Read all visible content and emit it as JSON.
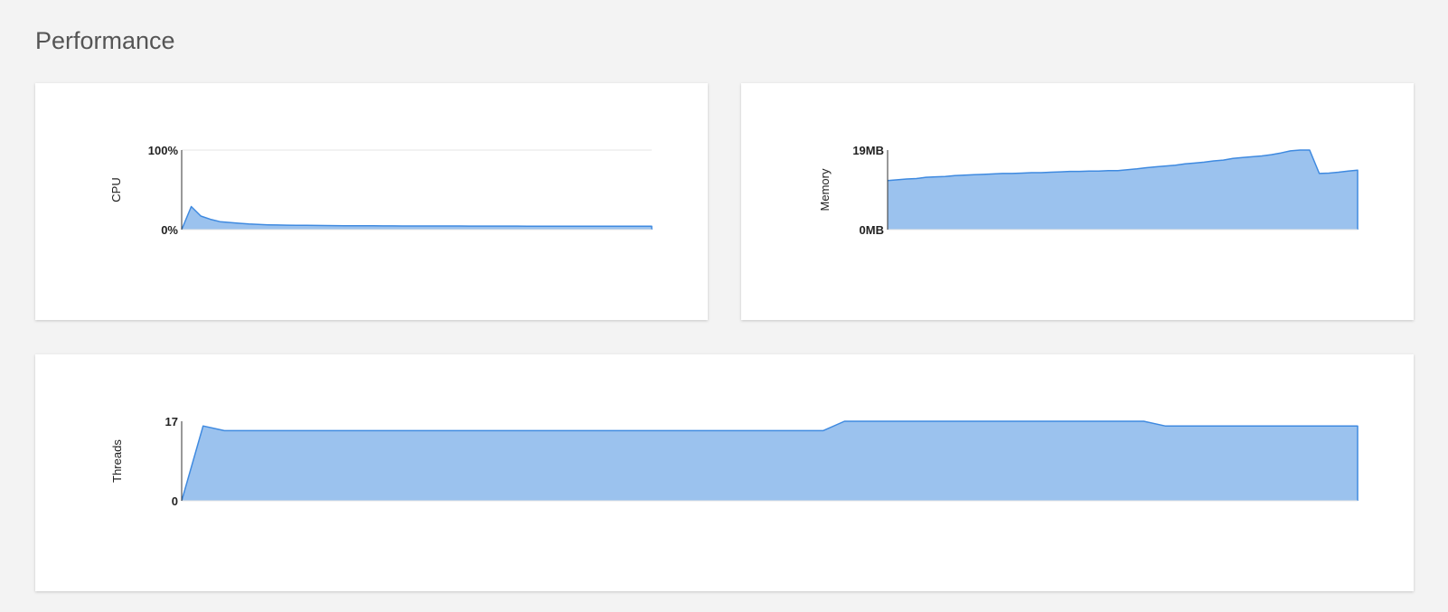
{
  "page": {
    "title": "Performance"
  },
  "chart_data": [
    {
      "id": "cpu",
      "type": "area",
      "ylabel": "CPU",
      "ylim": [
        0,
        100
      ],
      "ytick_labels": [
        "0%",
        "100%"
      ],
      "grid": true,
      "x": [
        0,
        1,
        2,
        3,
        4,
        5,
        6,
        7,
        8,
        9,
        10,
        11,
        12,
        13,
        14,
        15,
        16,
        17,
        18,
        19,
        20,
        21,
        22,
        23,
        24,
        25,
        26,
        27,
        28,
        29,
        30,
        31,
        32,
        33,
        34,
        35,
        36,
        37,
        38,
        39,
        40,
        41,
        42,
        43,
        44,
        45,
        46,
        47,
        48,
        49
      ],
      "values": [
        0,
        29,
        17,
        13,
        10,
        9,
        8,
        7,
        6.5,
        6,
        5.8,
        5.6,
        5.4,
        5.3,
        5.2,
        5.1,
        5.0,
        4.9,
        4.9,
        4.8,
        4.8,
        4.7,
        4.7,
        4.6,
        4.6,
        4.6,
        4.5,
        4.5,
        4.5,
        4.5,
        4.4,
        4.4,
        4.4,
        4.4,
        4.4,
        4.4,
        4.3,
        4.3,
        4.3,
        4.3,
        4.3,
        4.3,
        4.3,
        4.3,
        4.3,
        4.3,
        4.3,
        4.3,
        4.2,
        4.2
      ],
      "colors": {
        "fill": "#9bc2ee",
        "line": "#3f8ae0"
      }
    },
    {
      "id": "memory",
      "type": "area",
      "ylabel": "Memory",
      "ylim": [
        0,
        19
      ],
      "ytick_labels": [
        "0MB",
        "19MB"
      ],
      "grid": false,
      "x": [
        0,
        1,
        2,
        3,
        4,
        5,
        6,
        7,
        8,
        9,
        10,
        11,
        12,
        13,
        14,
        15,
        16,
        17,
        18,
        19,
        20,
        21,
        22,
        23,
        24,
        25,
        26,
        27,
        28,
        29,
        30,
        31,
        32,
        33,
        34,
        35,
        36,
        37,
        38,
        39,
        40,
        41,
        42,
        43,
        44,
        45,
        46,
        47,
        48,
        49
      ],
      "values": [
        11.7,
        11.9,
        12.1,
        12.2,
        12.5,
        12.6,
        12.7,
        12.9,
        13.0,
        13.1,
        13.2,
        13.3,
        13.4,
        13.4,
        13.5,
        13.6,
        13.6,
        13.7,
        13.8,
        13.9,
        13.9,
        14.0,
        14.0,
        14.1,
        14.1,
        14.3,
        14.5,
        14.8,
        15.0,
        15.2,
        15.4,
        15.7,
        15.9,
        16.1,
        16.4,
        16.6,
        17.0,
        17.2,
        17.4,
        17.6,
        17.9,
        18.3,
        18.8,
        19.0,
        19.0,
        13.4,
        13.5,
        13.7,
        14.0,
        14.2
      ],
      "colors": {
        "fill": "#9bc2ee",
        "line": "#3f8ae0"
      }
    },
    {
      "id": "threads",
      "type": "area",
      "ylabel": "Threads",
      "ylim": [
        0,
        17
      ],
      "ytick_labels": [
        "0",
        "17"
      ],
      "grid": false,
      "x": [
        0,
        1,
        2,
        3,
        4,
        5,
        6,
        7,
        8,
        9,
        10,
        11,
        12,
        13,
        14,
        15,
        16,
        17,
        18,
        19,
        20,
        21,
        22,
        23,
        24,
        25,
        26,
        27,
        28,
        29,
        30,
        31,
        32,
        33,
        34,
        35,
        36,
        37,
        38,
        39,
        40,
        41,
        42,
        43,
        44,
        45,
        46,
        47,
        48,
        49,
        50,
        51,
        52,
        53,
        54,
        55
      ],
      "values": [
        0,
        16,
        15,
        15,
        15,
        15,
        15,
        15,
        15,
        15,
        15,
        15,
        15,
        15,
        15,
        15,
        15,
        15,
        15,
        15,
        15,
        15,
        15,
        15,
        15,
        15,
        15,
        15,
        15,
        15,
        15,
        17,
        17,
        17,
        17,
        17,
        17,
        17,
        17,
        17,
        17,
        17,
        17,
        17,
        17,
        17,
        16,
        16,
        16,
        16,
        16,
        16,
        16,
        16,
        16,
        16
      ],
      "colors": {
        "fill": "#9bc2ee",
        "line": "#3f8ae0"
      }
    }
  ]
}
